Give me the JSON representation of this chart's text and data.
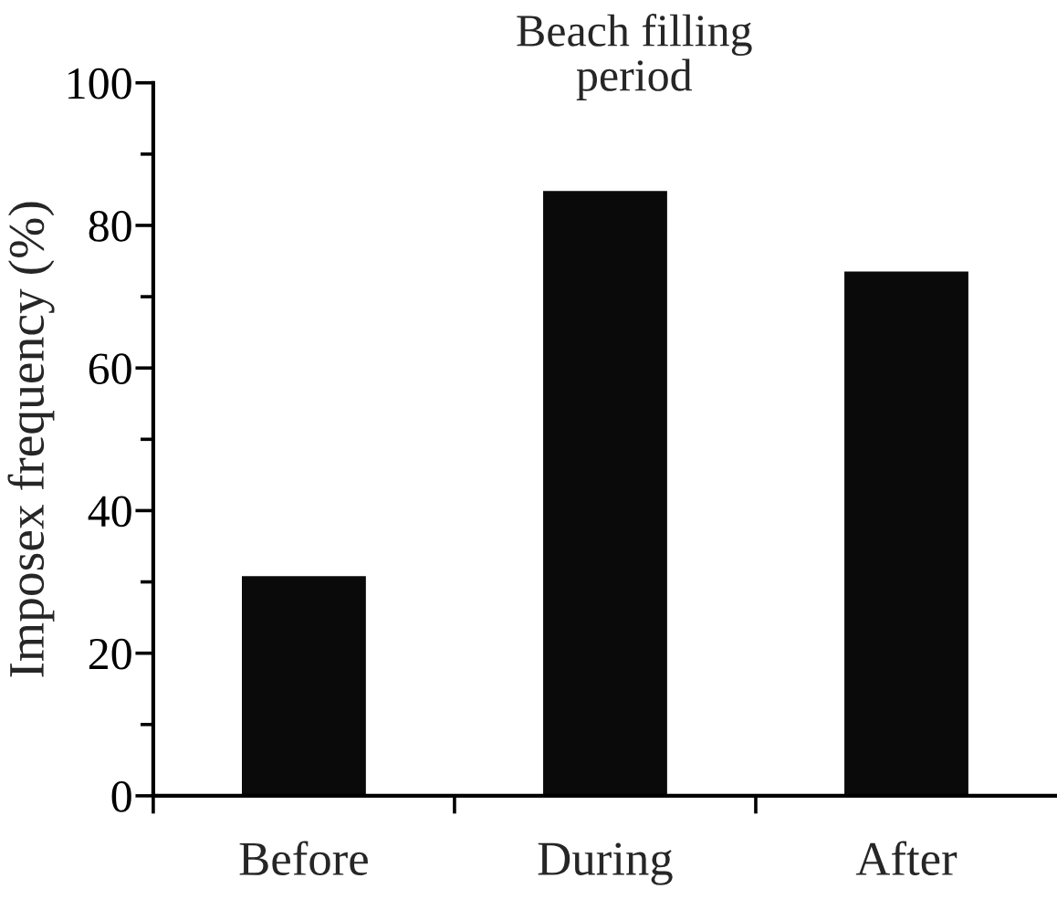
{
  "chart_data": {
    "type": "bar",
    "title": "Beach filling\nperiod",
    "ylabel": "Imposex frequency (%)",
    "categories": [
      "Before",
      "During",
      "After"
    ],
    "values": [
      31,
      85,
      73.7
    ],
    "color": "#0a0a0a",
    "ylim": [
      0,
      100
    ],
    "yticks": [
      0,
      20,
      40,
      60,
      80,
      100
    ],
    "grid": false,
    "legend": false
  }
}
